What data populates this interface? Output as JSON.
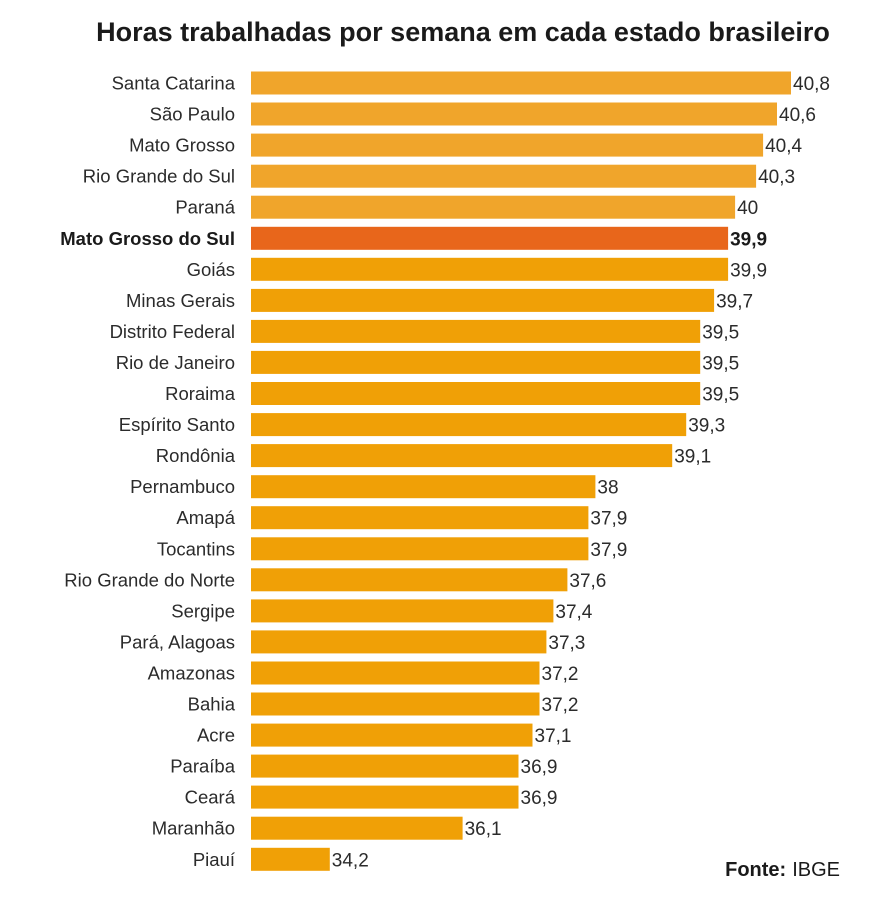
{
  "chart_data": {
    "type": "bar",
    "orientation": "horizontal",
    "title": "Horas trabalhadas por semana em cada estado brasileiro",
    "xlabel": "",
    "ylabel": "",
    "categories": [
      "Santa Catarina",
      "São Paulo",
      "Mato Grosso",
      "Rio Grande do Sul",
      "Paraná",
      "Mato Grosso do Sul",
      "Goiás",
      "Minas Gerais",
      "Distrito Federal",
      "Rio de Janeiro",
      "Roraima",
      "Espírito Santo",
      "Rondônia",
      "Pernambuco",
      "Amapá",
      "Tocantins",
      "Rio Grande do Norte",
      "Sergipe",
      "Pará, Alagoas",
      "Amazonas",
      "Bahia",
      "Acre",
      "Paraíba",
      "Ceará",
      "Maranhão",
      "Piauí"
    ],
    "values": [
      40.8,
      40.6,
      40.4,
      40.3,
      40,
      39.9,
      39.9,
      39.7,
      39.5,
      39.5,
      39.5,
      39.3,
      39.1,
      38,
      37.9,
      37.9,
      37.6,
      37.4,
      37.3,
      37.2,
      37.2,
      37.1,
      36.9,
      36.9,
      36.1,
      34.2
    ],
    "value_labels": [
      "40,8",
      "40,6",
      "40,4",
      "40,3",
      "40",
      "39,9",
      "39,9",
      "39,7",
      "39,5",
      "39,5",
      "39,5",
      "39,3",
      "39,1",
      "38",
      "37,9",
      "37,9",
      "37,6",
      "37,4",
      "37,3",
      "37,2",
      "37,2",
      "37,1",
      "36,9",
      "36,9",
      "36,1",
      "34,2"
    ],
    "highlight_index": 5,
    "xlim": [
      33,
      40.8
    ],
    "grid": false,
    "legend": "none",
    "colors": {
      "bar_top": "#f0a52b",
      "bar": "#f0a006",
      "highlight": "#e8661b"
    }
  },
  "source": {
    "label": "Fonte:",
    "text": "IBGE"
  }
}
